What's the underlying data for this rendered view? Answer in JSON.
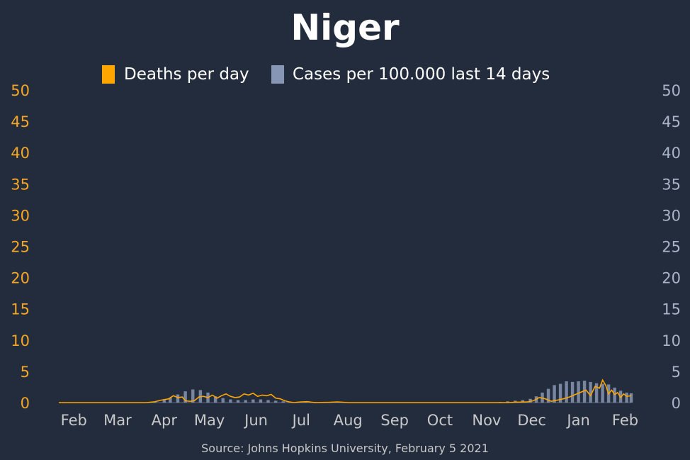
{
  "chart_data": {
    "type": "bar+line",
    "title": "Niger",
    "source": "Source: Johns Hopkins University, February 5 2021",
    "legend": {
      "position": "top-center",
      "entries": [
        {
          "label": "Deaths per day",
          "color": "#ffa500",
          "kind": "line"
        },
        {
          "label": "Cases per 100.000 last 14 days",
          "color": "#8796b4",
          "kind": "bar"
        }
      ]
    },
    "x_range": [
      "2020-01-22",
      "2021-02-05"
    ],
    "x_ticks": [
      {
        "date": "2020-02-01",
        "label": "Feb"
      },
      {
        "date": "2020-03-01",
        "label": "Mar"
      },
      {
        "date": "2020-04-01",
        "label": "Apr"
      },
      {
        "date": "2020-05-01",
        "label": "May"
      },
      {
        "date": "2020-06-01",
        "label": "Jun"
      },
      {
        "date": "2020-07-01",
        "label": "Jul"
      },
      {
        "date": "2020-08-01",
        "label": "Aug"
      },
      {
        "date": "2020-09-01",
        "label": "Sep"
      },
      {
        "date": "2020-10-01",
        "label": "Oct"
      },
      {
        "date": "2020-11-01",
        "label": "Nov"
      },
      {
        "date": "2020-12-01",
        "label": "Dec"
      },
      {
        "date": "2021-01-01",
        "label": "Jan"
      },
      {
        "date": "2021-02-01",
        "label": "Feb"
      }
    ],
    "y_left": {
      "range": [
        0,
        50
      ],
      "ticks": [
        "0",
        "5",
        "10",
        "15",
        "20",
        "25",
        "30",
        "35",
        "40",
        "45",
        "50"
      ],
      "color": "#f5a623"
    },
    "y_right": {
      "range": [
        0,
        50
      ],
      "ticks": [
        "0",
        "5",
        "10",
        "15",
        "20",
        "25",
        "30",
        "35",
        "40",
        "45",
        "50"
      ],
      "color": "#aab4c8"
    },
    "grid": false,
    "series": [
      {
        "name": "Cases per 100.000 last 14 days",
        "axis": "right",
        "type": "bar",
        "points": [
          [
            "2020-03-20",
            0.0
          ],
          [
            "2020-03-26",
            0.1
          ],
          [
            "2020-04-01",
            0.4
          ],
          [
            "2020-04-05",
            0.8
          ],
          [
            "2020-04-10",
            1.3
          ],
          [
            "2020-04-15",
            1.8
          ],
          [
            "2020-04-20",
            2.1
          ],
          [
            "2020-04-25",
            2.0
          ],
          [
            "2020-04-30",
            1.6
          ],
          [
            "2020-05-05",
            1.0
          ],
          [
            "2020-05-10",
            0.7
          ],
          [
            "2020-05-15",
            0.5
          ],
          [
            "2020-05-20",
            0.4
          ],
          [
            "2020-05-25",
            0.4
          ],
          [
            "2020-05-30",
            0.5
          ],
          [
            "2020-06-04",
            0.5
          ],
          [
            "2020-06-09",
            0.4
          ],
          [
            "2020-06-14",
            0.3
          ],
          [
            "2020-06-19",
            0.2
          ],
          [
            "2020-06-24",
            0.1
          ],
          [
            "2020-06-29",
            0.15
          ],
          [
            "2020-07-04",
            0.2
          ],
          [
            "2020-07-10",
            0.1
          ],
          [
            "2020-07-20",
            0.05
          ],
          [
            "2020-08-01",
            0.05
          ],
          [
            "2020-08-15",
            0.02
          ],
          [
            "2020-09-01",
            0.02
          ],
          [
            "2020-10-01",
            0.01
          ],
          [
            "2020-11-01",
            0.02
          ],
          [
            "2020-11-10",
            0.1
          ],
          [
            "2020-11-15",
            0.2
          ],
          [
            "2020-11-20",
            0.3
          ],
          [
            "2020-11-25",
            0.4
          ],
          [
            "2020-11-30",
            0.6
          ],
          [
            "2020-12-04",
            1.0
          ],
          [
            "2020-12-08",
            1.6
          ],
          [
            "2020-12-12",
            2.2
          ],
          [
            "2020-12-16",
            2.8
          ],
          [
            "2020-12-20",
            3.0
          ],
          [
            "2020-12-24",
            3.4
          ],
          [
            "2020-12-28",
            3.3
          ],
          [
            "2021-01-01",
            3.4
          ],
          [
            "2021-01-05",
            3.5
          ],
          [
            "2021-01-09",
            3.3
          ],
          [
            "2021-01-13",
            3.1
          ],
          [
            "2021-01-17",
            3.0
          ],
          [
            "2021-01-21",
            2.9
          ],
          [
            "2021-01-25",
            2.4
          ],
          [
            "2021-01-29",
            1.9
          ],
          [
            "2021-02-02",
            1.6
          ],
          [
            "2021-02-05",
            1.5
          ]
        ]
      },
      {
        "name": "Deaths per day",
        "axis": "left",
        "type": "line",
        "points": [
          [
            "2020-01-22",
            0
          ],
          [
            "2020-03-20",
            0
          ],
          [
            "2020-03-25",
            0.1
          ],
          [
            "2020-03-30",
            0.4
          ],
          [
            "2020-04-04",
            0.6
          ],
          [
            "2020-04-07",
            1.1
          ],
          [
            "2020-04-10",
            0.8
          ],
          [
            "2020-04-13",
            0.9
          ],
          [
            "2020-04-15",
            0.3
          ],
          [
            "2020-04-18",
            0.2
          ],
          [
            "2020-04-21",
            0.3
          ],
          [
            "2020-04-24",
            0.9
          ],
          [
            "2020-04-27",
            1.0
          ],
          [
            "2020-04-30",
            0.8
          ],
          [
            "2020-05-03",
            1.2
          ],
          [
            "2020-05-06",
            0.7
          ],
          [
            "2020-05-09",
            1.1
          ],
          [
            "2020-05-12",
            1.4
          ],
          [
            "2020-05-15",
            1.0
          ],
          [
            "2020-05-18",
            0.8
          ],
          [
            "2020-05-21",
            0.9
          ],
          [
            "2020-05-24",
            1.4
          ],
          [
            "2020-05-27",
            1.2
          ],
          [
            "2020-05-30",
            1.5
          ],
          [
            "2020-06-02",
            1.0
          ],
          [
            "2020-06-05",
            1.2
          ],
          [
            "2020-06-08",
            1.1
          ],
          [
            "2020-06-11",
            1.3
          ],
          [
            "2020-06-14",
            0.7
          ],
          [
            "2020-06-17",
            0.6
          ],
          [
            "2020-06-20",
            0.3
          ],
          [
            "2020-06-23",
            0.1
          ],
          [
            "2020-06-26",
            0.0
          ],
          [
            "2020-07-01",
            0.1
          ],
          [
            "2020-07-05",
            0.15
          ],
          [
            "2020-07-10",
            0.0
          ],
          [
            "2020-07-20",
            0.05
          ],
          [
            "2020-07-25",
            0.1
          ],
          [
            "2020-08-01",
            0.0
          ],
          [
            "2020-11-15",
            0.0
          ],
          [
            "2020-11-20",
            0.05
          ],
          [
            "2020-11-28",
            0.1
          ],
          [
            "2020-12-02",
            0.3
          ],
          [
            "2020-12-06",
            0.8
          ],
          [
            "2020-12-10",
            0.6
          ],
          [
            "2020-12-14",
            0.2
          ],
          [
            "2020-12-18",
            0.4
          ],
          [
            "2020-12-22",
            0.6
          ],
          [
            "2020-12-26",
            0.9
          ],
          [
            "2020-12-30",
            1.3
          ],
          [
            "2021-01-03",
            1.7
          ],
          [
            "2021-01-06",
            2.0
          ],
          [
            "2021-01-09",
            1.1
          ],
          [
            "2021-01-12",
            2.6
          ],
          [
            "2021-01-15",
            2.3
          ],
          [
            "2021-01-17",
            3.6
          ],
          [
            "2021-01-19",
            2.8
          ],
          [
            "2021-01-21",
            1.4
          ],
          [
            "2021-01-23",
            2.0
          ],
          [
            "2021-01-25",
            1.3
          ],
          [
            "2021-01-27",
            1.6
          ],
          [
            "2021-01-29",
            0.8
          ],
          [
            "2021-01-31",
            1.4
          ],
          [
            "2021-02-02",
            1.0
          ],
          [
            "2021-02-05",
            1.1
          ]
        ]
      }
    ]
  }
}
